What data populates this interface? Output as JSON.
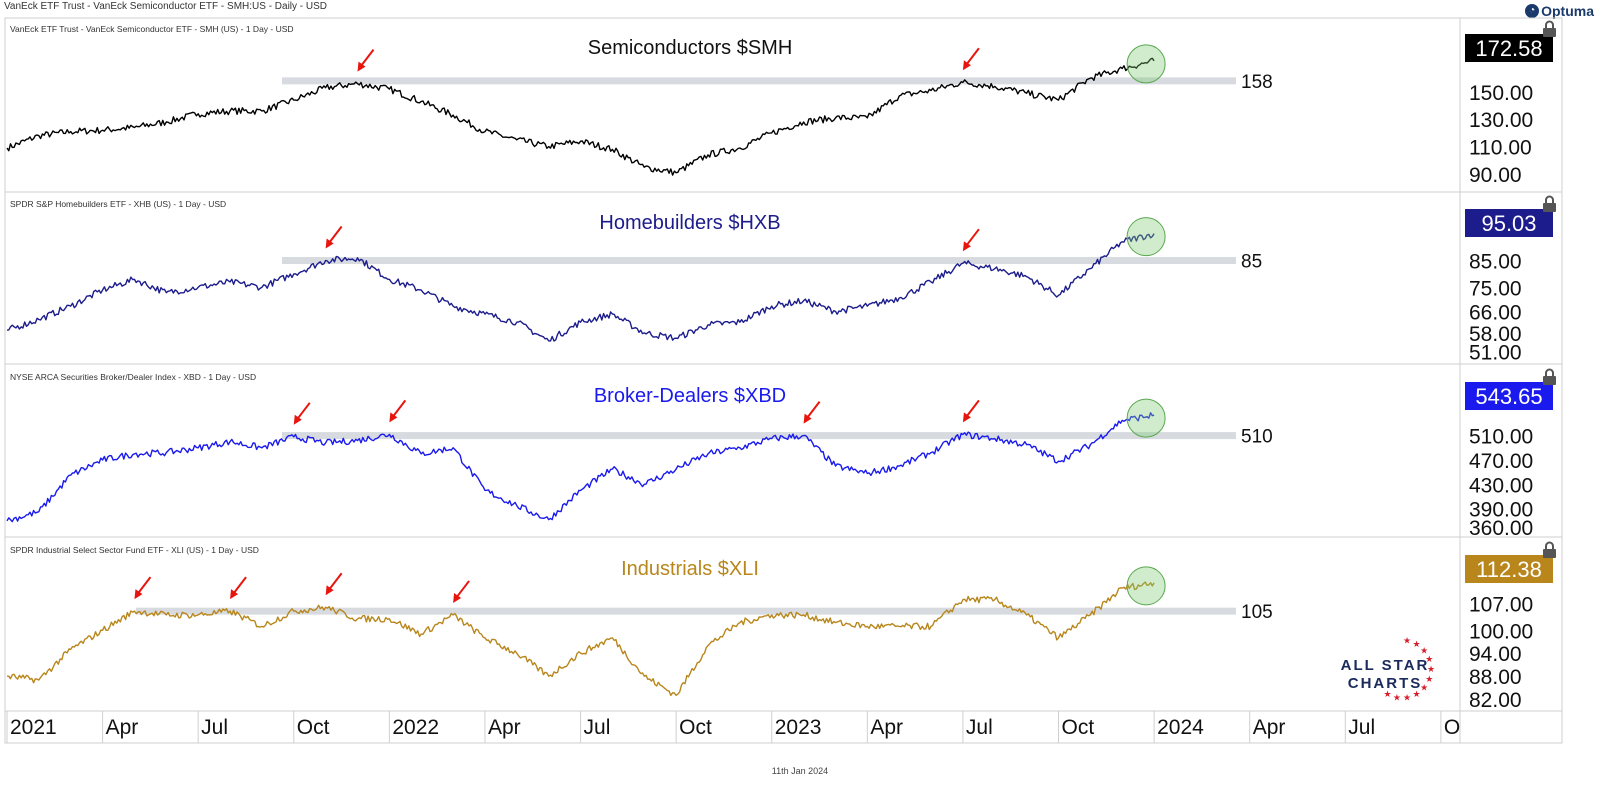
{
  "window": {
    "title": "VanEck ETF Trust - VanEck Semiconductor ETF - SMH:US - Daily - USD",
    "brand": "Optuma",
    "footer_date": "11th Jan 2024"
  },
  "watermark": {
    "line1": "ALL STAR",
    "line2": "CHARTS"
  },
  "icons": {
    "lock": "lock-icon",
    "brand": "optuma-logo-icon"
  },
  "chart_data": [
    {
      "type": "line",
      "source_label": "VanEck ETF Trust - VanEck Semiconductor ETF - SMH (US) - 1 Day - USD",
      "title": "Semiconductors $SMH",
      "color": "#000000",
      "last_value": "172.58",
      "resistance": 158,
      "resistance_label": "158",
      "ylim": [
        82,
        182
      ],
      "ytick_labels": [
        "90.00",
        "110.00",
        "130.00",
        "150.00"
      ],
      "ytick_values": [
        90,
        110,
        130,
        150
      ],
      "x": [
        "2021-01",
        "2021-02",
        "2021-03",
        "2021-04",
        "2021-05",
        "2021-06",
        "2021-07",
        "2021-08",
        "2021-09",
        "2021-10",
        "2021-11",
        "2021-12",
        "2022-01",
        "2022-02",
        "2022-03",
        "2022-04",
        "2022-05",
        "2022-06",
        "2022-07",
        "2022-08",
        "2022-09",
        "2022-10",
        "2022-11",
        "2022-12",
        "2023-01",
        "2023-02",
        "2023-03",
        "2023-04",
        "2023-05",
        "2023-06",
        "2023-07",
        "2023-08",
        "2023-09",
        "2023-10",
        "2023-11",
        "2023-12",
        "2024-01"
      ],
      "values": [
        109,
        118,
        121,
        122,
        124,
        128,
        134,
        136,
        136,
        144,
        153,
        156,
        152,
        143,
        133,
        121,
        115,
        110,
        114,
        108,
        95,
        91,
        104,
        109,
        120,
        128,
        131,
        131,
        147,
        151,
        157,
        154,
        149,
        144,
        160,
        167,
        172.58
      ],
      "peak_markers": [
        "2021-12",
        "2023-07"
      ],
      "highlight": "2024-01"
    },
    {
      "type": "line",
      "source_label": "SPDR S&P Homebuilders ETF - XHB (US) - 1 Day - USD",
      "title": "Homebuilders $HXB",
      "color": "#1c1c8c",
      "last_value": "95.03",
      "resistance": 85,
      "resistance_label": "85",
      "ylim": [
        49,
        99
      ],
      "ytick_labels": [
        "51.00",
        "58.00",
        "66.00",
        "75.00",
        "85.00"
      ],
      "ytick_values": [
        51,
        58,
        66,
        75,
        85
      ],
      "x": [
        "2021-01",
        "2021-02",
        "2021-03",
        "2021-04",
        "2021-05",
        "2021-06",
        "2021-07",
        "2021-08",
        "2021-09",
        "2021-10",
        "2021-11",
        "2021-12",
        "2022-01",
        "2022-02",
        "2022-03",
        "2022-04",
        "2022-05",
        "2022-06",
        "2022-07",
        "2022-08",
        "2022-09",
        "2022-10",
        "2022-11",
        "2022-12",
        "2023-01",
        "2023-02",
        "2023-03",
        "2023-04",
        "2023-05",
        "2023-06",
        "2023-07",
        "2023-08",
        "2023-09",
        "2023-10",
        "2023-11",
        "2023-12",
        "2024-01"
      ],
      "values": [
        59,
        63,
        68,
        74,
        78,
        73,
        75,
        77,
        75,
        80,
        85,
        86,
        78,
        74,
        68,
        65,
        62,
        55,
        62,
        65,
        58,
        56,
        61,
        62,
        68,
        70,
        66,
        68,
        71,
        77,
        84,
        82,
        79,
        72,
        82,
        92,
        95.03
      ],
      "peak_markers": [
        "2021-11",
        "2023-07"
      ],
      "highlight": "2024-01"
    },
    {
      "type": "line",
      "source_label": "NYSE ARCA Securities Broker/Dealer Index - XBD - 1 Day - USD",
      "title": "Broker-Dealers $XBD",
      "color": "#1a1aee",
      "last_value": "543.65",
      "resistance": 510,
      "resistance_label": "510",
      "ylim": [
        355,
        575
      ],
      "ytick_labels": [
        "360.00",
        "390.00",
        "430.00",
        "470.00",
        "510.00"
      ],
      "ytick_values": [
        360,
        390,
        430,
        470,
        510
      ],
      "x": [
        "2021-01",
        "2021-02",
        "2021-03",
        "2021-04",
        "2021-05",
        "2021-06",
        "2021-07",
        "2021-08",
        "2021-09",
        "2021-10",
        "2021-11",
        "2021-12",
        "2022-01",
        "2022-02",
        "2022-03",
        "2022-04",
        "2022-05",
        "2022-06",
        "2022-07",
        "2022-08",
        "2022-09",
        "2022-10",
        "2022-11",
        "2022-12",
        "2023-01",
        "2023-02",
        "2023-03",
        "2023-04",
        "2023-05",
        "2023-06",
        "2023-07",
        "2023-08",
        "2023-09",
        "2023-10",
        "2023-11",
        "2023-12",
        "2024-01"
      ],
      "values": [
        370,
        385,
        445,
        470,
        480,
        482,
        490,
        500,
        490,
        508,
        498,
        502,
        512,
        480,
        490,
        420,
        395,
        372,
        420,
        455,
        430,
        455,
        480,
        490,
        505,
        510,
        460,
        448,
        460,
        482,
        512,
        505,
        495,
        468,
        495,
        535,
        543.65
      ],
      "peak_markers": [
        "2021-10",
        "2022-01",
        "2023-02",
        "2023-07"
      ],
      "highlight": "2024-01"
    },
    {
      "type": "line",
      "source_label": "SPDR Industrial Select Sector Fund ETF - XLI (US) - 1 Day - USD",
      "title": "Industrials $XLI",
      "color": "#b8861b",
      "last_value": "112.38",
      "resistance": 105,
      "resistance_label": "105",
      "ylim": [
        81,
        116
      ],
      "ytick_labels": [
        "82.00",
        "88.00",
        "94.00",
        "100.00",
        "107.00"
      ],
      "ytick_values": [
        82,
        88,
        94,
        100,
        107
      ],
      "x": [
        "2021-01",
        "2021-02",
        "2021-03",
        "2021-04",
        "2021-05",
        "2021-06",
        "2021-07",
        "2021-08",
        "2021-09",
        "2021-10",
        "2021-11",
        "2021-12",
        "2022-01",
        "2022-02",
        "2022-03",
        "2022-04",
        "2022-05",
        "2022-06",
        "2022-07",
        "2022-08",
        "2022-09",
        "2022-10",
        "2022-11",
        "2022-12",
        "2023-01",
        "2023-02",
        "2023-03",
        "2023-04",
        "2023-05",
        "2023-06",
        "2023-07",
        "2023-08",
        "2023-09",
        "2023-10",
        "2023-11",
        "2023-12",
        "2024-01"
      ],
      "values": [
        88,
        87,
        95,
        100,
        105,
        104,
        104,
        105,
        101,
        105,
        106,
        103,
        103,
        99,
        104,
        98,
        94,
        88,
        94,
        98,
        88,
        83,
        96,
        102,
        104,
        104,
        102,
        101,
        101,
        101,
        108,
        108,
        104,
        98,
        104,
        111,
        112.38
      ],
      "peak_markers": [
        "2021-05",
        "2021-08",
        "2021-11",
        "2022-03"
      ],
      "highlight": "2024-01"
    }
  ],
  "x_axis": {
    "labels": [
      "2021",
      "Apr",
      "Jul",
      "Oct",
      "2022",
      "Apr",
      "Jul",
      "Oct",
      "2023",
      "Apr",
      "Jul",
      "Oct",
      "2024",
      "Apr",
      "Jul",
      "O"
    ],
    "dates": [
      "2021-01",
      "2021-04",
      "2021-07",
      "2021-10",
      "2022-01",
      "2022-04",
      "2022-07",
      "2022-10",
      "2023-01",
      "2023-04",
      "2023-07",
      "2023-10",
      "2024-01",
      "2024-04",
      "2024-07",
      "2024-10"
    ]
  }
}
